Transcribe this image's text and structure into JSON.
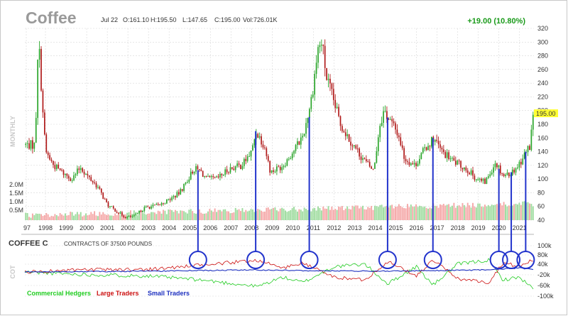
{
  "header": {
    "symbol": "Coffee",
    "period": "Jul 22",
    "open": "O:161.10",
    "high": "H:195.50",
    "low": "L:147.65",
    "close": "C:195.00",
    "volume": "Vol:726.01K",
    "change": "+19.00 (10.80%)",
    "change_color": "#1a9a1a"
  },
  "chart_data": [
    {
      "type": "candlestick",
      "panel": "price",
      "side_label": "MONTHLY",
      "last_price_label": "195.00",
      "x_ticks": [
        "97",
        "1998",
        "1999",
        "2000",
        "2001",
        "2002",
        "2003",
        "2004",
        "2005",
        "2006",
        "2007",
        "2008",
        "2009",
        "2010",
        "2011",
        "2012",
        "2013",
        "2014",
        "2015",
        "2016",
        "2017",
        "2018",
        "2019",
        "2020",
        "2021"
      ],
      "y_ticks": [
        "320",
        "300",
        "280",
        "260",
        "240",
        "220",
        "200",
        "180",
        "160",
        "140",
        "120",
        "100",
        "80",
        "60",
        "40"
      ],
      "ylim": [
        40,
        320
      ],
      "anchors": [
        [
          1997.5,
          150
        ],
        [
          1997.65,
          310
        ],
        [
          1997.8,
          235
        ],
        [
          1998.0,
          140
        ],
        [
          1998.4,
          120
        ],
        [
          1998.8,
          110
        ],
        [
          1999.3,
          100
        ],
        [
          1999.7,
          118
        ],
        [
          2000.0,
          105
        ],
        [
          2000.5,
          90
        ],
        [
          2001.0,
          62
        ],
        [
          2001.5,
          52
        ],
        [
          2001.9,
          44
        ],
        [
          2002.3,
          46
        ],
        [
          2002.8,
          58
        ],
        [
          2003.5,
          62
        ],
        [
          2004.0,
          70
        ],
        [
          2004.5,
          80
        ],
        [
          2005.2,
          115
        ],
        [
          2005.5,
          112
        ],
        [
          2005.8,
          100
        ],
        [
          2006.3,
          100
        ],
        [
          2006.9,
          115
        ],
        [
          2007.5,
          120
        ],
        [
          2008.0,
          140
        ],
        [
          2008.2,
          170
        ],
        [
          2008.6,
          150
        ],
        [
          2008.9,
          110
        ],
        [
          2009.5,
          120
        ],
        [
          2010.0,
          140
        ],
        [
          2010.5,
          165
        ],
        [
          2010.9,
          220
        ],
        [
          2011.2,
          290
        ],
        [
          2011.4,
          300
        ],
        [
          2011.6,
          250
        ],
        [
          2011.9,
          220
        ],
        [
          2012.3,
          180
        ],
        [
          2012.9,
          150
        ],
        [
          2013.5,
          125
        ],
        [
          2013.9,
          112
        ],
        [
          2014.2,
          180
        ],
        [
          2014.4,
          200
        ],
        [
          2014.8,
          180
        ],
        [
          2015.1,
          165
        ],
        [
          2015.4,
          130
        ],
        [
          2015.9,
          120
        ],
        [
          2016.4,
          145
        ],
        [
          2016.8,
          160
        ],
        [
          2017.2,
          140
        ],
        [
          2017.8,
          125
        ],
        [
          2018.4,
          115
        ],
        [
          2018.9,
          100
        ],
        [
          2019.3,
          95
        ],
        [
          2019.8,
          125
        ],
        [
          2020.2,
          105
        ],
        [
          2020.6,
          110
        ],
        [
          2020.9,
          120
        ],
        [
          2021.2,
          135
        ],
        [
          2021.5,
          150
        ],
        [
          2021.6,
          195
        ]
      ],
      "volume_y_ticks": [
        "2.0M",
        "1.5M",
        "1.0M",
        "0.5M"
      ]
    },
    {
      "type": "line",
      "panel": "commitment_of_traders",
      "title": "COFFEE C",
      "subtitle": "CONTRACTS OF 37500 POUNDS",
      "side_label": "COT",
      "y_ticks": [
        "100k",
        "80k",
        "40k",
        "20k",
        "0",
        "-20k",
        "-40k",
        "-60k",
        "-100k"
      ],
      "ylim": [
        -100000,
        100000
      ],
      "series": [
        {
          "name": "Commercial Hedgers",
          "color": "#22cc22",
          "anchors": [
            [
              1997.0,
              0
            ],
            [
              2000.0,
              -10000
            ],
            [
              2003.0,
              -15000
            ],
            [
              2005.5,
              -30000
            ],
            [
              2008.3,
              -55000
            ],
            [
              2009.5,
              -20000
            ],
            [
              2010.5,
              -40000
            ],
            [
              2012.0,
              20000
            ],
            [
              2013.5,
              30000
            ],
            [
              2014.6,
              -45000
            ],
            [
              2016.0,
              20000
            ],
            [
              2016.8,
              -50000
            ],
            [
              2018.0,
              30000
            ],
            [
              2019.5,
              45000
            ],
            [
              2020.2,
              -30000
            ],
            [
              2021.0,
              -20000
            ],
            [
              2021.6,
              -60000
            ]
          ]
        },
        {
          "name": "Large Traders",
          "color": "#cc1111",
          "anchors": [
            [
              1997.0,
              0
            ],
            [
              2000.0,
              8000
            ],
            [
              2003.0,
              10000
            ],
            [
              2005.5,
              25000
            ],
            [
              2008.3,
              45000
            ],
            [
              2009.5,
              15000
            ],
            [
              2010.5,
              35000
            ],
            [
              2012.0,
              -20000
            ],
            [
              2013.5,
              -30000
            ],
            [
              2014.6,
              40000
            ],
            [
              2016.0,
              -15000
            ],
            [
              2016.8,
              45000
            ],
            [
              2018.0,
              -25000
            ],
            [
              2019.5,
              -40000
            ],
            [
              2020.2,
              35000
            ],
            [
              2021.0,
              20000
            ],
            [
              2021.6,
              45000
            ]
          ]
        },
        {
          "name": "Small Traders",
          "color": "#1c2fbf",
          "anchors": [
            [
              1997.0,
              0
            ],
            [
              2003.0,
              3000
            ],
            [
              2008.0,
              8000
            ],
            [
              2011.0,
              5000
            ],
            [
              2014.0,
              3000
            ],
            [
              2017.0,
              5000
            ],
            [
              2019.5,
              8000
            ],
            [
              2021.0,
              15000
            ],
            [
              2021.6,
              10000
            ]
          ]
        }
      ],
      "highlight_years": [
        2005.4,
        2008.2,
        2010.8,
        2014.6,
        2016.8,
        2020.0,
        2020.6,
        2021.3
      ]
    }
  ],
  "colors": {
    "up": "#2aa52a",
    "down": "#b01a1a",
    "annotation": "#2233cc",
    "volume_up": "#9fdc9f",
    "volume_down": "#f5a9a9",
    "grid": "#d8d8d8",
    "highlight": "#ffff33"
  }
}
